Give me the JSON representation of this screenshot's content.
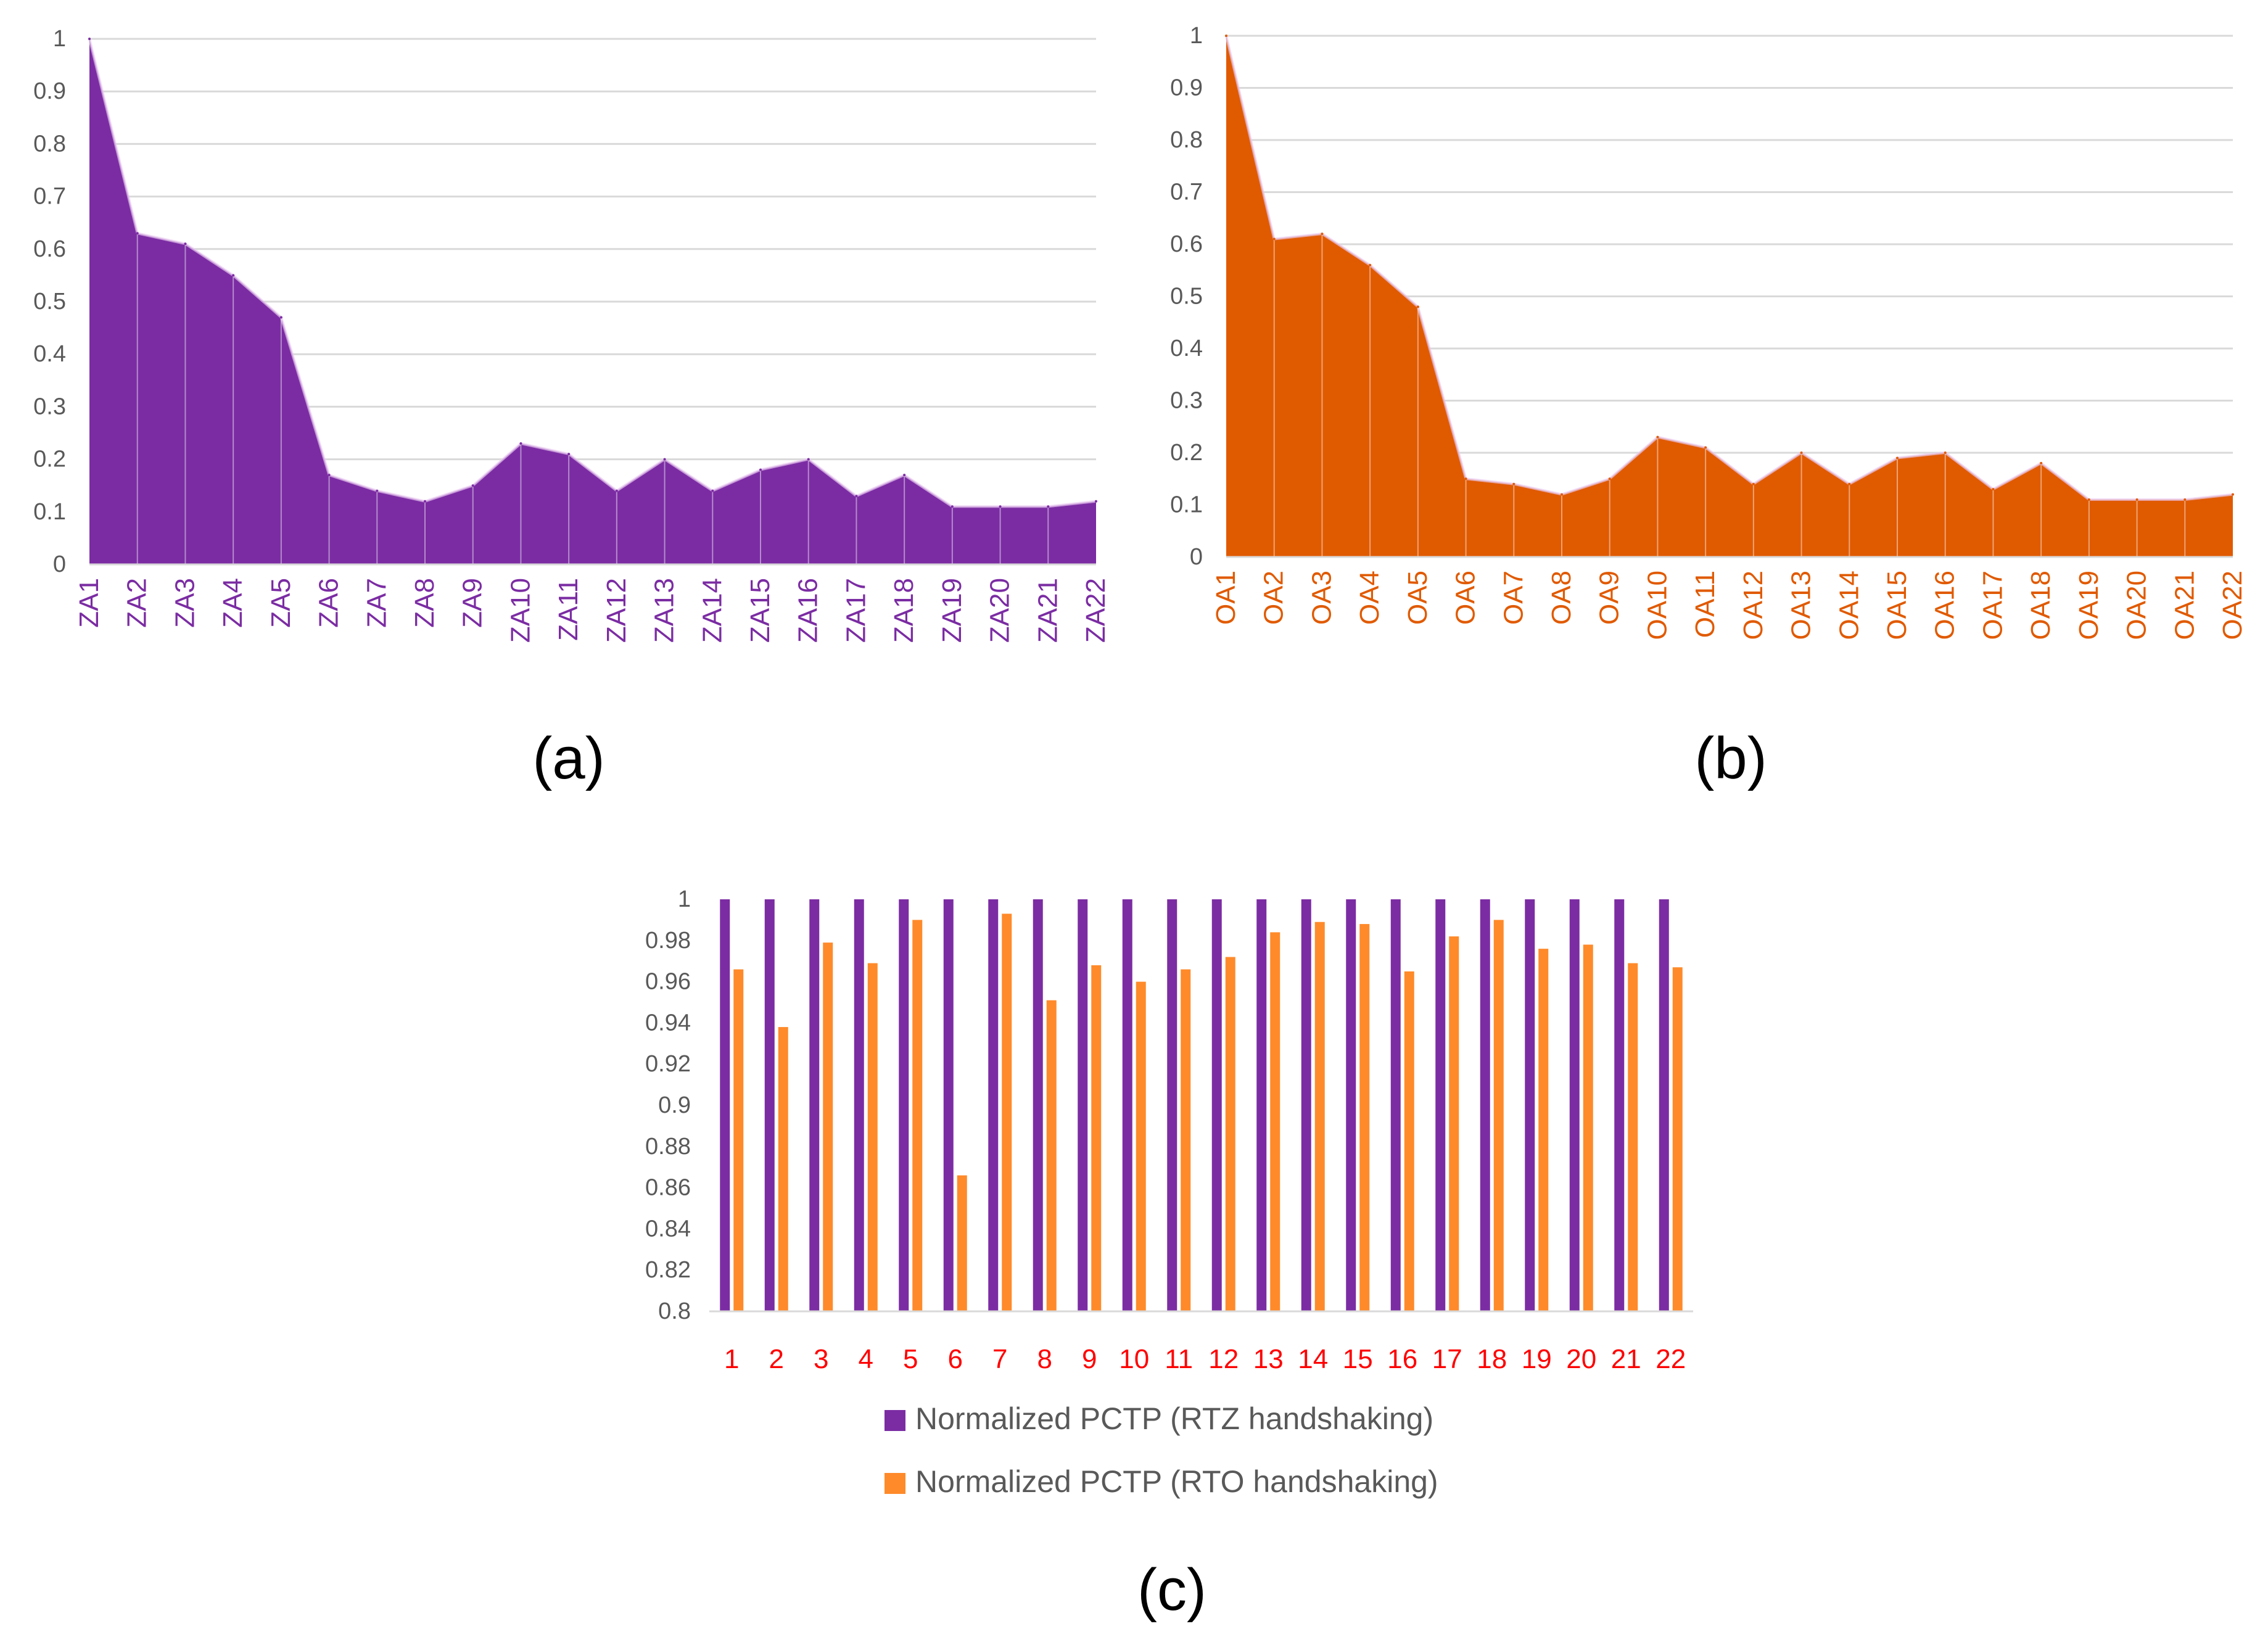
{
  "colors": {
    "purple": "#7B2CA3",
    "orange_b": "#E05A00",
    "orange_c": "#FF8A2A",
    "grid": "#D9D9D9",
    "axis_text": "#595959",
    "red_tick": "#FF0000"
  },
  "chart_data": [
    {
      "id": "a",
      "type": "area",
      "caption": "(a)",
      "categories": [
        "ZA1",
        "ZA2",
        "ZA3",
        "ZA4",
        "ZA5",
        "ZA6",
        "ZA7",
        "ZA8",
        "ZA9",
        "ZA10",
        "ZA11",
        "ZA12",
        "ZA13",
        "ZA14",
        "ZA15",
        "ZA16",
        "ZA17",
        "ZA18",
        "ZA19",
        "ZA20",
        "ZA21",
        "ZA22"
      ],
      "values": [
        1.0,
        0.63,
        0.61,
        0.55,
        0.47,
        0.17,
        0.14,
        0.12,
        0.15,
        0.23,
        0.21,
        0.14,
        0.2,
        0.14,
        0.18,
        0.2,
        0.13,
        0.17,
        0.11,
        0.11,
        0.11,
        0.12
      ],
      "ylim": [
        0,
        1
      ],
      "yticks": [
        "0",
        "0.1",
        "0.2",
        "0.3",
        "0.4",
        "0.5",
        "0.6",
        "0.7",
        "0.8",
        "0.9",
        "1"
      ],
      "grid": true
    },
    {
      "id": "b",
      "type": "area",
      "caption": "(b)",
      "categories": [
        "OA1",
        "OA2",
        "OA3",
        "OA4",
        "OA5",
        "OA6",
        "OA7",
        "OA8",
        "OA9",
        "OA10",
        "OA11",
        "OA12",
        "OA13",
        "OA14",
        "OA15",
        "OA16",
        "OA17",
        "OA18",
        "OA19",
        "OA20",
        "OA21",
        "OA22"
      ],
      "values": [
        1.0,
        0.61,
        0.62,
        0.56,
        0.48,
        0.15,
        0.14,
        0.12,
        0.15,
        0.23,
        0.21,
        0.14,
        0.2,
        0.14,
        0.19,
        0.2,
        0.13,
        0.18,
        0.11,
        0.11,
        0.11,
        0.12
      ],
      "ylim": [
        0,
        1
      ],
      "yticks": [
        "0",
        "0.1",
        "0.2",
        "0.3",
        "0.4",
        "0.5",
        "0.6",
        "0.7",
        "0.8",
        "0.9",
        "1"
      ],
      "grid": true
    },
    {
      "id": "c",
      "type": "bar",
      "caption": "(c)",
      "categories": [
        "1",
        "2",
        "3",
        "4",
        "5",
        "6",
        "7",
        "8",
        "9",
        "10",
        "11",
        "12",
        "13",
        "14",
        "15",
        "16",
        "17",
        "18",
        "19",
        "20",
        "21",
        "22"
      ],
      "series": [
        {
          "name": "Normalized PCTP (RTZ handshaking)",
          "values": [
            1,
            1,
            1,
            1,
            1,
            1,
            1,
            1,
            1,
            1,
            1,
            1,
            1,
            1,
            1,
            1,
            1,
            1,
            1,
            1,
            1,
            1
          ]
        },
        {
          "name": "Normalized PCTP (RTO handshaking)",
          "values": [
            0.966,
            0.938,
            0.979,
            0.969,
            0.99,
            0.866,
            0.993,
            0.951,
            0.968,
            0.96,
            0.966,
            0.972,
            0.984,
            0.989,
            0.988,
            0.965,
            0.982,
            0.99,
            0.976,
            0.978,
            0.969,
            0.967
          ]
        }
      ],
      "ylim": [
        0.8,
        1
      ],
      "yticks": [
        "0.8",
        "0.82",
        "0.84",
        "0.86",
        "0.88",
        "0.9",
        "0.92",
        "0.94",
        "0.96",
        "0.98",
        "1"
      ],
      "legend_position": "bottom",
      "grid": false
    }
  ]
}
